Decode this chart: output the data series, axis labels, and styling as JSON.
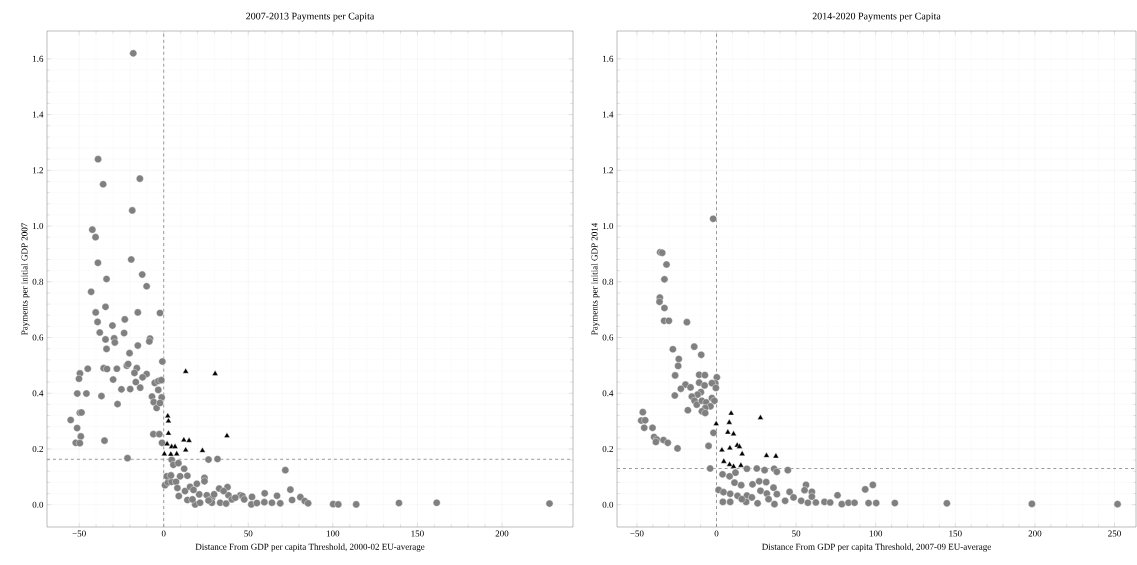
{
  "chart_data": [
    {
      "type": "scatter",
      "title": "2007-2013 Payments per Capita",
      "xlabel": "Distance From GDP per capita Threshold, 2000-02 EU-average",
      "ylabel": "Payments per initial GDP 2007",
      "xlim": [
        -69,
        242
      ],
      "ylim": [
        -0.08,
        1.7
      ],
      "xticks": [
        {
          "value": -50,
          "label": "−50"
        },
        0,
        50,
        100,
        150,
        200
      ],
      "yticks": [
        {
          "value": 0,
          "label": "0.0"
        },
        {
          "value": 0.2,
          "label": "0.2"
        },
        {
          "value": 0.4,
          "label": "0.4"
        },
        {
          "value": 0.6,
          "label": "0.6"
        },
        {
          "value": 0.8,
          "label": "0.8"
        },
        {
          "value": 1.0,
          "label": "1.0"
        },
        {
          "value": 1.2,
          "label": "1.2"
        },
        {
          "value": 1.4,
          "label": "1.4"
        },
        {
          "value": 1.6,
          "label": "1.6"
        }
      ],
      "grid": true,
      "ref_lines": [
        {
          "axis": "x",
          "value": 0,
          "color": "#808080",
          "line_style": "dashed"
        },
        {
          "axis": "y",
          "value": 0.163,
          "color": "#808080",
          "line_style": "dashed"
        }
      ],
      "series": [
        {
          "marker": "circle",
          "color": "#808080",
          "x": [
            -18,
            -38.8,
            -35.8,
            -14.1,
            -18.6,
            -42.2,
            -40.3,
            -38.9,
            -19.2,
            -33.8,
            -12.7,
            -10.1,
            -42.9,
            -40.2,
            -34.4,
            -15.3,
            -2.2,
            -39.1,
            -37.8,
            -30.3,
            -23,
            -23.4,
            -34.4,
            -29.3,
            -28.9,
            -33.8,
            -8.1,
            -8.5,
            -15.3,
            -20.2,
            -0.8,
            -44.9,
            -49.5,
            -50.1,
            -35.5,
            -33.5,
            -27.7,
            -21.8,
            -21,
            -15.9,
            -17.3,
            -10.1,
            -12.5,
            -29.9,
            -16.5,
            -13.9,
            -25,
            -19.8,
            -5.3,
            -3.2,
            -1.4,
            -51.1,
            -45.7,
            -36.8,
            -3.2,
            -6.9,
            -5.9,
            -1.2,
            -4.2,
            -2.2,
            -27.3,
            -55,
            -51.2,
            -49.6,
            -48.6,
            -49,
            -52,
            -49.6,
            -35,
            -6.1,
            -2.6,
            -1,
            -21.4,
            0.8,
            2.5,
            4.7,
            31.8,
            26.5,
            4.7,
            5.7,
            8.7,
            12.1,
            14,
            71.9,
            1.8,
            4.3,
            9.7,
            7.3,
            8.1,
            8.9,
            12.6,
            14,
            15.6,
            18.6,
            21.5,
            24.1,
            24.1,
            19.6,
            21,
            17.6,
            25.5,
            28.5,
            28.5,
            32.8,
            33.4,
            37.7,
            38.3,
            36.9,
            40.3,
            45.3,
            46.6,
            52.2,
            51.8,
            55.1,
            59.7,
            59.5,
            64,
            67,
            68.9,
            74.9,
            75.9,
            80.8,
            83.4,
            85.4,
            100.2,
            103.2,
            113.8,
            139.1,
            161.4,
            228.1,
            29.8,
            35.4,
            42.3,
            47.6,
            17,
            26.5
          ],
          "values": [
            1.62,
            1.24,
            1.15,
            1.17,
            1.056,
            0.987,
            0.96,
            0.868,
            0.88,
            0.81,
            0.826,
            0.784,
            0.764,
            0.69,
            0.71,
            0.69,
            0.688,
            0.656,
            0.618,
            0.643,
            0.665,
            0.616,
            0.593,
            0.597,
            0.582,
            0.559,
            0.596,
            0.586,
            0.571,
            0.544,
            0.514,
            0.488,
            0.471,
            0.452,
            0.49,
            0.487,
            0.488,
            0.499,
            0.505,
            0.49,
            0.473,
            0.469,
            0.457,
            0.449,
            0.44,
            0.42,
            0.414,
            0.415,
            0.437,
            0.444,
            0.447,
            0.399,
            0.399,
            0.39,
            0.412,
            0.388,
            0.368,
            0.385,
            0.347,
            0.365,
            0.361,
            0.304,
            0.275,
            0.33,
            0.331,
            0.245,
            0.222,
            0.221,
            0.23,
            0.253,
            0.253,
            0.222,
            0.167,
            0.07,
            0.08,
            0.082,
            0.164,
            0.162,
            0.161,
            0.143,
            0.149,
            0.129,
            0.104,
            0.124,
            0.102,
            0.105,
            0.102,
            0.082,
            0.06,
            0.031,
            0.049,
            0.017,
            0.064,
            0.001,
            0.007,
            0.096,
            0.084,
            0.075,
            0.037,
            0.053,
            0.034,
            0.022,
            0.007,
            0.058,
            0.007,
            0.063,
            0.034,
            0.004,
            0.019,
            0.034,
            0.031,
            0.028,
            0.001,
            0.006,
            0.041,
            0.009,
            0.007,
            0.032,
            0.005,
            0.054,
            0.017,
            0.027,
            0.013,
            0.005,
            0.002,
            0.001,
            0.001,
            0.006,
            0.007,
            0.004,
            0.037,
            0.049,
            0.025,
            0.019,
            0.019,
            0.015
          ]
        },
        {
          "marker": "triangle",
          "color": "#000000",
          "x": [
            13,
            30.4,
            2.4,
            2.8,
            2.8,
            37.4,
            11.9,
            15,
            2,
            4.7,
            6.7,
            13,
            22.9,
            0.4,
            4.2,
            7.7
          ],
          "values": [
            0.478,
            0.47,
            0.318,
            0.3,
            0.256,
            0.247,
            0.232,
            0.23,
            0.218,
            0.208,
            0.208,
            0.196,
            0.194,
            0.182,
            0.181,
            0.182
          ]
        }
      ]
    },
    {
      "type": "scatter",
      "title": "2014-2020 Payments per Capita",
      "xlabel": "Distance From GDP per capita Threshold, 2007-09 EU-average",
      "ylabel": "Payments per initial GDP 2014",
      "xlim": [
        -62.5,
        263.5
      ],
      "ylim": [
        -0.08,
        1.7
      ],
      "xticks": [
        {
          "value": -50,
          "label": "−50"
        },
        0,
        50,
        100,
        150,
        200,
        250
      ],
      "yticks": [
        {
          "value": 0,
          "label": "0.0"
        },
        {
          "value": 0.2,
          "label": "0.2"
        },
        {
          "value": 0.4,
          "label": "0.4"
        },
        {
          "value": 0.6,
          "label": "0.6"
        },
        {
          "value": 0.8,
          "label": "0.8"
        },
        {
          "value": 1.0,
          "label": "1.0"
        },
        {
          "value": 1.2,
          "label": "1.2"
        },
        {
          "value": 1.4,
          "label": "1.4"
        },
        {
          "value": 1.6,
          "label": "1.6"
        }
      ],
      "grid": true,
      "ref_lines": [
        {
          "axis": "x",
          "value": 0,
          "color": "#808080",
          "line_style": "dashed"
        },
        {
          "axis": "y",
          "value": 0.13,
          "color": "#808080",
          "line_style": "dashed"
        }
      ],
      "series": [
        {
          "marker": "circle",
          "color": "#808080",
          "x": [
            -2.1,
            -35.4,
            -34.1,
            -31.4,
            -32.7,
            -35.6,
            -35.8,
            -32.7,
            -32.9,
            -29.9,
            -18.6,
            -27.4,
            -14,
            -9.6,
            -23.7,
            -24.1,
            -26,
            -10.9,
            -7.3,
            0.2,
            -0.8,
            -2.9,
            -10.9,
            -19.5,
            -16.3,
            -22.4,
            -7.5,
            -0.4,
            -26.2,
            -9.8,
            -11.9,
            -15.5,
            -13.8,
            -12.4,
            -9.2,
            -6.5,
            -2.9,
            -1.3,
            -3.8,
            -7.1,
            -9.2,
            -7.1,
            -18,
            -46.3,
            -47.3,
            -44.8,
            -45.4,
            -40.2,
            -39.2,
            -37.5,
            -38.1,
            -33.3,
            -30.6,
            -24.5,
            -1.9,
            -5,
            -4,
            19.1,
            25.3,
            30.2,
            36.2,
            37.9,
            44.8,
            3.8,
            8.2,
            11.9,
            11.3,
            15.5,
            22.6,
            26.8,
            31.2,
            35.8,
            27.6,
            1.3,
            4.4,
            8.6,
            13.2,
            19.1,
            22.2,
            31.6,
            37.9,
            45.9,
            56.2,
            55.3,
            59.9,
            59.9,
            76,
            93.4,
            98.2,
            4,
            8.6,
            18.6,
            25.8,
            36.4,
            43.1,
            53.2,
            57.4,
            62.4,
            67.8,
            71.4,
            78.7,
            82.9,
            86.7,
            95.5,
            100.3,
            112,
            144.7,
            198.1,
            251.9,
            32.7,
            48.4,
            15.9
          ],
          "values": [
            1.026,
            0.906,
            0.904,
            0.862,
            0.809,
            0.743,
            0.728,
            0.706,
            0.66,
            0.66,
            0.655,
            0.558,
            0.567,
            0.538,
            0.523,
            0.498,
            0.464,
            0.466,
            0.465,
            0.457,
            0.436,
            0.436,
            0.438,
            0.431,
            0.421,
            0.416,
            0.428,
            0.419,
            0.392,
            0.404,
            0.395,
            0.388,
            0.373,
            0.359,
            0.373,
            0.367,
            0.383,
            0.373,
            0.353,
            0.347,
            0.335,
            0.329,
            0.339,
            0.332,
            0.302,
            0.303,
            0.276,
            0.276,
            0.243,
            0.234,
            0.225,
            0.232,
            0.222,
            0.202,
            0.258,
            0.211,
            0.13,
            0.129,
            0.13,
            0.124,
            0.129,
            0.118,
            0.124,
            0.109,
            0.102,
            0.115,
            0.079,
            0.07,
            0.073,
            0.084,
            0.081,
            0.061,
            0.05,
            0.053,
            0.045,
            0.039,
            0.032,
            0.033,
            0.026,
            0.04,
            0.038,
            0.046,
            0.071,
            0.052,
            0.046,
            0.029,
            0.034,
            0.055,
            0.071,
            0.01,
            0.01,
            0.01,
            0.005,
            0.002,
            0.014,
            0.014,
            0.007,
            0.008,
            0.01,
            0.008,
            0.002,
            0.007,
            0.007,
            0.006,
            0.006,
            0.006,
            0.005,
            0.003,
            0.002,
            0.02,
            0.026,
            0.02
          ]
        },
        {
          "marker": "triangle",
          "color": "#000000",
          "x": [
            9.2,
            27.6,
            -0.2,
            8,
            7.1,
            10.7,
            13,
            14.4,
            3.4,
            8.4,
            16.1,
            31.4,
            37.3,
            4.6,
            8.2,
            10.7,
            15.3
          ],
          "values": [
            0.328,
            0.312,
            0.29,
            0.295,
            0.26,
            0.254,
            0.213,
            0.208,
            0.196,
            0.203,
            0.182,
            0.176,
            0.174,
            0.155,
            0.144,
            0.137,
            0.141
          ]
        }
      ]
    }
  ]
}
